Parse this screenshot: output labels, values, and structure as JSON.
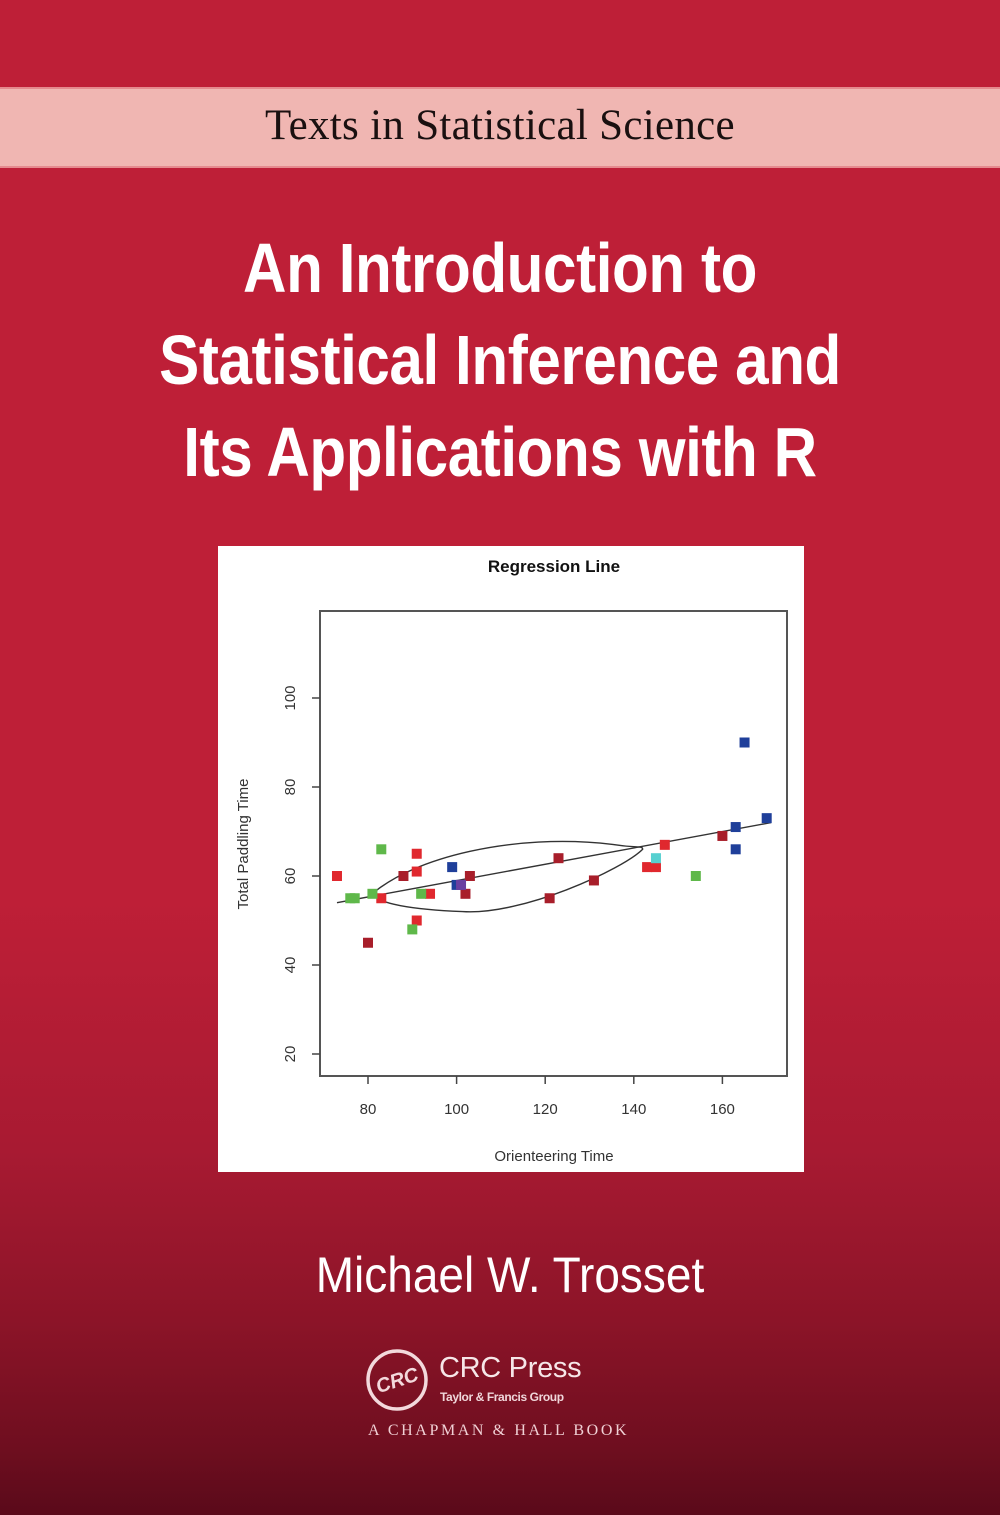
{
  "cover": {
    "series": "Texts in Statistical Science",
    "title_lines": [
      "An Introduction to",
      "Statistical Inference and",
      "Its Applications with R"
    ],
    "author": "Michael W. Trosset",
    "publisher": {
      "name": "CRC Press",
      "logo_text": "CRC",
      "group": "Taylor & Francis Group",
      "imprint": "A CHAPMAN & HALL BOOK"
    },
    "colors": {
      "background": "#be1f37",
      "background_bottom": "#5a0a1a",
      "series_band": "#f0b6b2",
      "title_text": "#ffffff"
    }
  },
  "chart_data": {
    "type": "scatter",
    "title": "Regression Line",
    "xlabel": "Orienteering Time",
    "ylabel": "Total Paddling Time",
    "xlim": [
      70,
      175
    ],
    "ylim": [
      15,
      120
    ],
    "xticks": [
      80,
      100,
      120,
      140,
      160
    ],
    "yticks": [
      20,
      40,
      60,
      80,
      100
    ],
    "grid": false,
    "legend": null,
    "series": [
      {
        "name": "red",
        "color": "#e0282e",
        "points": [
          [
            73,
            60
          ],
          [
            83,
            55
          ],
          [
            91,
            61
          ],
          [
            91,
            65
          ],
          [
            91,
            50
          ],
          [
            94,
            56
          ],
          [
            143,
            62
          ],
          [
            145,
            62
          ],
          [
            147,
            67
          ]
        ]
      },
      {
        "name": "darkred",
        "color": "#a81e2a",
        "points": [
          [
            80,
            45
          ],
          [
            88,
            60
          ],
          [
            102,
            56
          ],
          [
            103,
            60
          ],
          [
            121,
            55
          ],
          [
            123,
            64
          ],
          [
            131,
            59
          ],
          [
            160,
            69
          ]
        ]
      },
      {
        "name": "green",
        "color": "#5fb84a",
        "points": [
          [
            76,
            55
          ],
          [
            77,
            55
          ],
          [
            81,
            56
          ],
          [
            83,
            66
          ],
          [
            90,
            48
          ],
          [
            92,
            56
          ],
          [
            154,
            60
          ]
        ]
      },
      {
        "name": "blue",
        "color": "#1f3f9a",
        "points": [
          [
            99,
            62
          ],
          [
            100,
            58
          ],
          [
            163,
            71
          ],
          [
            163,
            66
          ],
          [
            165,
            90
          ],
          [
            170,
            73
          ]
        ]
      },
      {
        "name": "purple",
        "color": "#6a3fa0",
        "points": [
          [
            101,
            58
          ]
        ]
      },
      {
        "name": "cyan",
        "color": "#56d0d0",
        "points": [
          [
            145,
            64
          ]
        ]
      }
    ],
    "regression_line": {
      "x": [
        73,
        171
      ],
      "y": [
        54,
        72
      ]
    },
    "ellipse": {
      "left_tip": [
        81,
        56
      ],
      "right_tip": [
        142,
        66
      ],
      "upper_peak_y": 68,
      "lower_trough_y": 52
    }
  }
}
